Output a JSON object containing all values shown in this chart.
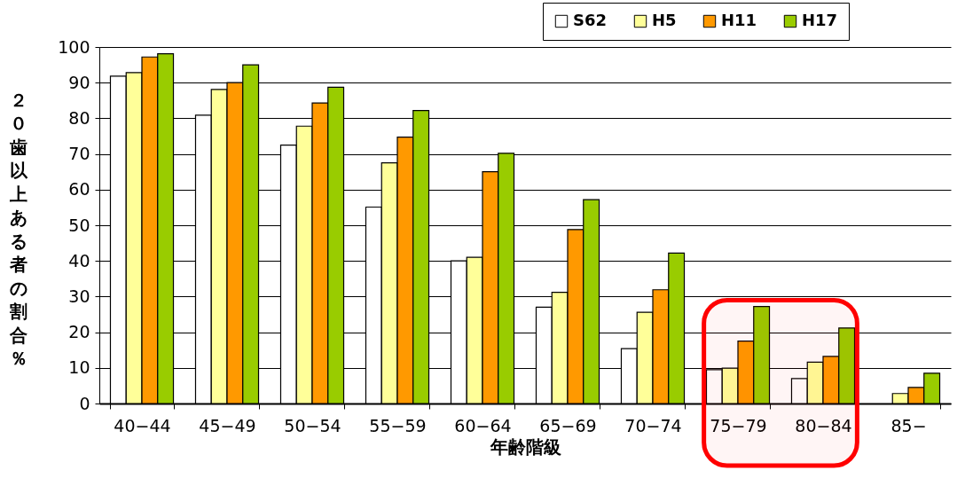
{
  "chart_data": {
    "type": "bar",
    "xlabel": "年齢階級",
    "ylabel": "２０歯以上ある者の割合％",
    "categories": [
      "40−44",
      "45−49",
      "50−54",
      "55−59",
      "60−64",
      "65−69",
      "70−74",
      "75−79",
      "80−84",
      "85−"
    ],
    "series": [
      {
        "name": "S62",
        "color": "#ffffff",
        "values": [
          91.8,
          80.9,
          72.5,
          55.1,
          40,
          27,
          15.4,
          9.5,
          7,
          null
        ]
      },
      {
        "name": "H5",
        "color": "#ffff99",
        "values": [
          92.8,
          88.1,
          77.8,
          67.5,
          41,
          31.2,
          25.6,
          9.9,
          11.6,
          2.8
        ]
      },
      {
        "name": "H11",
        "color": "#ff9900",
        "values": [
          97.2,
          90,
          84.3,
          74.7,
          65,
          48.8,
          31.9,
          17.5,
          13.2,
          4.5
        ]
      },
      {
        "name": "H17",
        "color": "#99cc00",
        "values": [
          98.1,
          95,
          88.7,
          82.2,
          70.2,
          57.2,
          42.2,
          27.2,
          21.2,
          8.5
        ]
      }
    ],
    "ylim": [
      0,
      100
    ],
    "yticks": [
      0,
      10,
      20,
      30,
      40,
      50,
      60,
      70,
      80,
      90,
      100
    ],
    "grid": "y",
    "legend": "top right",
    "bands": [
      {
        "axis": "x",
        "from": "75−79",
        "to": "80−84",
        "color": "#ff0000"
      }
    ]
  }
}
